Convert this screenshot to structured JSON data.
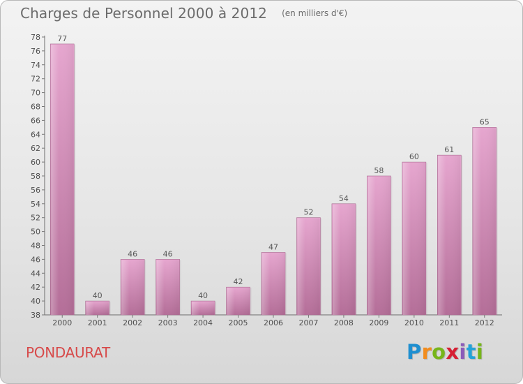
{
  "chart": {
    "title": "Charges de Personnel 2000 à 2012",
    "subtitle": "(en milliers d'€)",
    "footer_left": "PONDAURAT",
    "logo": {
      "letters": [
        "P",
        "r",
        "o",
        "x",
        "i",
        "t",
        "i"
      ],
      "colors": [
        "#1f8fd0",
        "#f28c1e",
        "#77b51a",
        "#d61f33",
        "#8b5bb9",
        "#23a2d8",
        "#77b51a"
      ]
    }
  },
  "chart_data": {
    "type": "bar",
    "categories": [
      "2000",
      "2001",
      "2002",
      "2003",
      "2004",
      "2005",
      "2006",
      "2007",
      "2008",
      "2009",
      "2010",
      "2011",
      "2012"
    ],
    "values": [
      77,
      40,
      46,
      46,
      40,
      42,
      47,
      52,
      54,
      58,
      60,
      61,
      65
    ],
    "title": "Charges de Personnel 2000 à 2012",
    "subtitle": "(en milliers d'€)",
    "xlabel": "",
    "ylabel": "",
    "ylim": [
      38,
      78
    ],
    "yticks": [
      38,
      40,
      42,
      44,
      46,
      48,
      50,
      52,
      54,
      56,
      58,
      60,
      62,
      64,
      66,
      68,
      70,
      72,
      74,
      76,
      78
    ],
    "grid": false,
    "legend": "none",
    "bar_color": "#cf7ea8"
  }
}
